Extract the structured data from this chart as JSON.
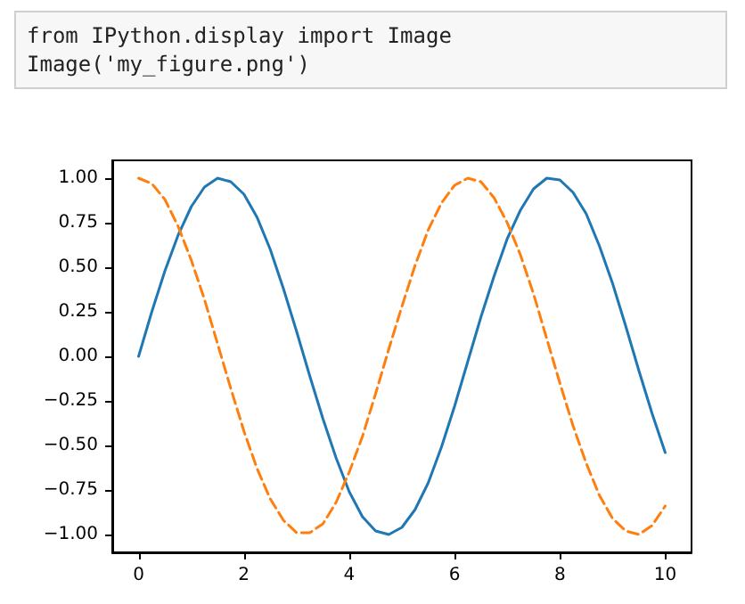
{
  "chart_data": {
    "type": "line",
    "annotations": [
      "from IPython.display import Image\nImage('my_figure.png')"
    ],
    "x": [
      0,
      0.25,
      0.5,
      0.75,
      1,
      1.25,
      1.5,
      1.75,
      2,
      2.25,
      2.5,
      2.75,
      3,
      3.25,
      3.5,
      3.75,
      4,
      4.25,
      4.5,
      4.75,
      5,
      5.25,
      5.5,
      5.75,
      6,
      6.25,
      6.5,
      6.75,
      7,
      7.25,
      7.5,
      7.75,
      8,
      8.25,
      8.5,
      8.75,
      9,
      9.25,
      9.5,
      9.75,
      10
    ],
    "series": [
      {
        "color": "#1f77b4",
        "line_style": "solid",
        "values": [
          0,
          0.25,
          0.48,
          0.68,
          0.84,
          0.95,
          1.0,
          0.98,
          0.91,
          0.78,
          0.6,
          0.38,
          0.14,
          -0.11,
          -0.35,
          -0.57,
          -0.76,
          -0.9,
          -0.98,
          -1.0,
          -0.96,
          -0.86,
          -0.71,
          -0.51,
          -0.28,
          -0.03,
          0.22,
          0.45,
          0.66,
          0.82,
          0.94,
          1.0,
          0.99,
          0.92,
          0.8,
          0.62,
          0.41,
          0.17,
          -0.08,
          -0.32,
          -0.54
        ]
      },
      {
        "color": "#ff7f0e",
        "line_style": "dashed",
        "values": [
          1.0,
          0.97,
          0.88,
          0.73,
          0.54,
          0.32,
          0.07,
          -0.18,
          -0.42,
          -0.63,
          -0.8,
          -0.92,
          -0.99,
          -0.99,
          -0.94,
          -0.82,
          -0.65,
          -0.45,
          -0.21,
          0.04,
          0.28,
          0.51,
          0.71,
          0.86,
          0.96,
          1.0,
          0.98,
          0.89,
          0.75,
          0.57,
          0.35,
          0.1,
          -0.15,
          -0.39,
          -0.6,
          -0.78,
          -0.91,
          -0.98,
          -1.0,
          -0.95,
          -0.84
        ]
      }
    ],
    "xlim": [
      -0.5,
      10.5
    ],
    "xticks": [
      0,
      2,
      4,
      6,
      8,
      10
    ],
    "ylim": [
      -1.1,
      1.1
    ],
    "yticks": [
      {
        "value": -1,
        "label": "−1.00"
      },
      {
        "value": -0.75,
        "label": "−0.75"
      },
      {
        "value": -0.5,
        "label": "−0.50"
      },
      {
        "value": -0.25,
        "label": "−0.25"
      },
      {
        "value": 0,
        "label": "0.00"
      },
      {
        "value": 0.25,
        "label": "0.25"
      },
      {
        "value": 0.5,
        "label": "0.50"
      },
      {
        "value": 0.75,
        "label": "0.75"
      },
      {
        "value": 1,
        "label": "1.00"
      }
    ],
    "marker": "none"
  }
}
